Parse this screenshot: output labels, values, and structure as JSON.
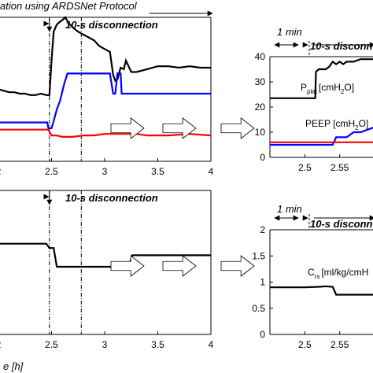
{
  "header": {
    "protocol_text": "ation using ARDSNet Protocol"
  },
  "colors": {
    "pressure_plat": "#000000",
    "peep": "#0000ff",
    "red_series": "#ff0000",
    "crs": "#000000",
    "arrow_fill": "#ffffff"
  },
  "chart_data": [
    {
      "id": "top-left",
      "type": "line",
      "xlabel": "",
      "ylabel": "",
      "xlim": [
        2.0,
        4.0
      ],
      "xticks": [
        "2",
        "2.5",
        "3",
        "3.5",
        "4"
      ],
      "annotation": "10-s disconnection",
      "event_lines": [
        2.48,
        2.78
      ],
      "series": [
        {
          "key": "black",
          "x": [
            2.0,
            2.05,
            2.1,
            2.15,
            2.2,
            2.25,
            2.3,
            2.35,
            2.4,
            2.45,
            2.48,
            2.5,
            2.52,
            2.55,
            2.58,
            2.6,
            2.63,
            2.66,
            2.7,
            2.75,
            2.8,
            2.85,
            2.9,
            2.95,
            3.0,
            3.05,
            3.08,
            3.1,
            3.12,
            3.15,
            3.18,
            3.2,
            3.25,
            3.3,
            3.35,
            3.4,
            3.5,
            3.6,
            3.7,
            3.8,
            3.9,
            4.0
          ],
          "y": [
            0.5,
            0.49,
            0.48,
            0.48,
            0.47,
            0.47,
            0.46,
            0.46,
            0.47,
            0.46,
            0.46,
            0.7,
            0.9,
            0.95,
            0.97,
            0.98,
            1.0,
            0.96,
            0.93,
            0.9,
            0.88,
            0.86,
            0.84,
            0.8,
            0.78,
            0.76,
            0.6,
            0.56,
            0.57,
            0.65,
            0.64,
            0.7,
            0.62,
            0.62,
            0.63,
            0.64,
            0.66,
            0.66,
            0.65,
            0.66,
            0.65,
            0.65
          ]
        },
        {
          "key": "blue",
          "x": [
            2.0,
            2.46,
            2.47,
            2.5,
            2.52,
            2.55,
            2.58,
            2.6,
            2.62,
            2.65,
            2.75,
            2.85,
            2.95,
            3.05,
            3.08,
            3.1,
            3.12,
            3.15,
            3.16,
            3.2,
            3.5,
            3.8,
            4.0
          ],
          "y": [
            0.27,
            0.27,
            0.23,
            0.23,
            0.28,
            0.36,
            0.42,
            0.48,
            0.54,
            0.61,
            0.61,
            0.61,
            0.61,
            0.61,
            0.47,
            0.47,
            0.61,
            0.61,
            0.47,
            0.47,
            0.47,
            0.47,
            0.47
          ]
        },
        {
          "key": "red",
          "x": [
            2.0,
            2.2,
            2.4,
            2.47,
            2.5,
            2.55,
            2.6,
            2.7,
            2.8,
            2.9,
            3.0,
            3.1,
            3.2,
            3.3,
            3.4,
            3.6,
            3.8,
            4.0
          ],
          "y": [
            0.22,
            0.22,
            0.22,
            0.22,
            0.18,
            0.18,
            0.17,
            0.17,
            0.18,
            0.18,
            0.19,
            0.19,
            0.19,
            0.19,
            0.18,
            0.18,
            0.19,
            0.18
          ]
        }
      ]
    },
    {
      "id": "bottom-left",
      "type": "line",
      "xlabel": "e [h]",
      "ylabel": "",
      "xlim": [
        2.0,
        4.0
      ],
      "xticks": [
        "2",
        "2.5",
        "3",
        "3.5",
        "4"
      ],
      "annotation": "10-s disconnection",
      "event_lines": [
        2.48,
        2.78
      ],
      "series": [
        {
          "key": "black",
          "x": [
            2.0,
            2.1,
            2.2,
            2.3,
            2.4,
            2.45,
            2.48,
            2.52,
            2.55,
            2.6,
            2.7,
            2.8,
            2.9,
            3.0,
            3.1,
            3.2,
            3.23,
            3.26,
            3.3,
            3.4,
            3.5,
            3.6,
            3.7,
            3.8,
            3.9,
            4.0
          ],
          "y": [
            0.63,
            0.63,
            0.63,
            0.63,
            0.63,
            0.63,
            0.6,
            0.6,
            0.47,
            0.47,
            0.47,
            0.47,
            0.47,
            0.47,
            0.47,
            0.48,
            0.48,
            0.55,
            0.55,
            0.55,
            0.55,
            0.55,
            0.55,
            0.55,
            0.55,
            0.55
          ]
        }
      ]
    },
    {
      "id": "top-right",
      "type": "line",
      "xlim": [
        2.45,
        2.6
      ],
      "ylim": [
        0,
        40
      ],
      "xticks": [
        "2.5",
        "2.55"
      ],
      "yticks": [
        "0",
        "10",
        "20",
        "30",
        "40"
      ],
      "scale_label": "1 min",
      "annotation": "10-s disconne",
      "series_labels": {
        "pplat_main": "P",
        "pplat_sub": "plat",
        "pplat_unit": "[cmH",
        "pplat_sub2": "2",
        "pplat_end": "O]",
        "peep_main": "PEEP [cmH",
        "peep_sub": "2",
        "peep_end": "O]"
      },
      "series": [
        {
          "key": "black",
          "x": [
            2.45,
            2.48,
            2.5,
            2.51,
            2.515,
            2.516,
            2.52,
            2.53,
            2.535,
            2.54,
            2.545,
            2.55,
            2.555,
            2.56,
            2.57,
            2.58,
            2.6
          ],
          "y": [
            23.5,
            23.5,
            23.5,
            23.5,
            23.5,
            34,
            35,
            35,
            36,
            38,
            37,
            38,
            37,
            38,
            38,
            39,
            39
          ]
        },
        {
          "key": "blue",
          "x": [
            2.45,
            2.48,
            2.5,
            2.516,
            2.53,
            2.54,
            2.545,
            2.56,
            2.57,
            2.58,
            2.6
          ],
          "y": [
            5,
            5,
            5,
            5,
            5,
            5,
            8,
            8,
            10,
            10,
            12
          ]
        },
        {
          "key": "red",
          "x": [
            2.45,
            2.48,
            2.5,
            2.516,
            2.53,
            2.545,
            2.56,
            2.57,
            2.58,
            2.6
          ],
          "y": [
            6,
            6,
            6,
            6,
            6,
            6,
            6,
            6,
            6,
            6
          ]
        }
      ]
    },
    {
      "id": "bottom-right",
      "type": "line",
      "xlim": [
        2.45,
        2.6
      ],
      "ylim": [
        0,
        2
      ],
      "xticks": [
        "2.5",
        "2.55"
      ],
      "yticks": [
        "0",
        "0.5",
        "1",
        "1.5",
        "2"
      ],
      "scale_label": "1 min",
      "annotation": "10-s disconn",
      "series_labels": {
        "crs_main": "C",
        "crs_sub": "rs",
        "crs_unit": "[ml/kg/cmH"
      },
      "series": [
        {
          "key": "black",
          "x": [
            2.45,
            2.48,
            2.5,
            2.52,
            2.53,
            2.54,
            2.545,
            2.55,
            2.6
          ],
          "y": [
            0.9,
            0.9,
            0.9,
            0.91,
            0.92,
            0.91,
            0.76,
            0.76,
            0.76
          ]
        }
      ]
    }
  ]
}
